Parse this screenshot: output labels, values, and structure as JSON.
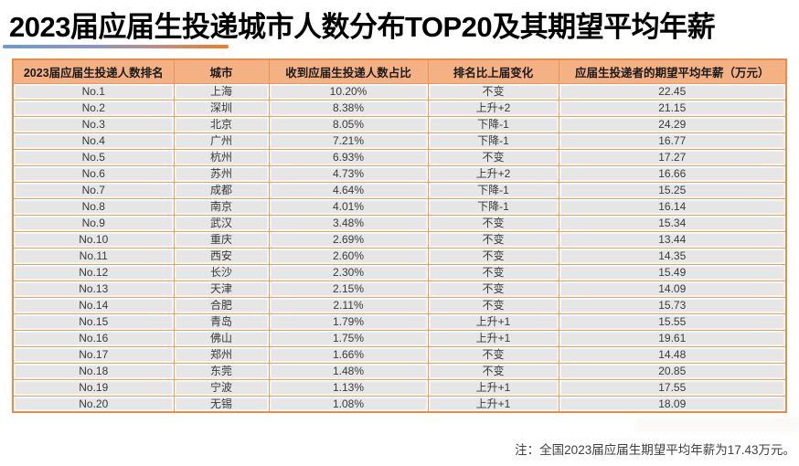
{
  "page": {
    "title": "2023届应届生投递城市人数分布TOP20及其期望平均年薪",
    "footnote": "注：全国2023届应届生期望平均年薪为17.43万元。",
    "colors": {
      "table_header_bg": "#F4B183",
      "table_grid_orange": "#F09A5E",
      "table_outer_border": "#ED8B46",
      "row_bg": "#E7E6E6",
      "underline_gradient_start": "#6C9BD2",
      "underline_gradient_end": "#ED7D31",
      "title_text": "#000000",
      "body_text": "#3A3A3A"
    }
  },
  "chart_data": {
    "type": "table",
    "title": "2023届应届生投递城市人数分布TOP20及其期望平均年薪",
    "note": "注：全国2023届应届生期望平均年薪为17.43万元。",
    "national_avg_expected_salary_wan": 17.43,
    "columns": [
      "2023届应届生投递人数排名",
      "城市",
      "收到应届生投递人数占比",
      "排名比上届变化",
      "应届生投递者的期望平均年薪（万元）"
    ],
    "rows": [
      [
        "No.1",
        "上海",
        "10.20%",
        "不变",
        "22.45"
      ],
      [
        "No.2",
        "深圳",
        "8.38%",
        "上升+2",
        "21.15"
      ],
      [
        "No.3",
        "北京",
        "8.05%",
        "下降-1",
        "24.29"
      ],
      [
        "No.4",
        "广州",
        "7.21%",
        "下降-1",
        "16.77"
      ],
      [
        "No.5",
        "杭州",
        "6.93%",
        "不变",
        "17.27"
      ],
      [
        "No.6",
        "苏州",
        "4.73%",
        "上升+2",
        "16.66"
      ],
      [
        "No.7",
        "成都",
        "4.64%",
        "下降-1",
        "15.25"
      ],
      [
        "No.8",
        "南京",
        "4.01%",
        "下降-1",
        "16.14"
      ],
      [
        "No.9",
        "武汉",
        "3.48%",
        "不变",
        "15.34"
      ],
      [
        "No.10",
        "重庆",
        "2.69%",
        "不变",
        "13.44"
      ],
      [
        "No.11",
        "西安",
        "2.60%",
        "不变",
        "14.35"
      ],
      [
        "No.12",
        "长沙",
        "2.30%",
        "不变",
        "15.49"
      ],
      [
        "No.13",
        "天津",
        "2.15%",
        "不变",
        "14.09"
      ],
      [
        "No.14",
        "合肥",
        "2.11%",
        "不变",
        "15.73"
      ],
      [
        "No.15",
        "青岛",
        "1.79%",
        "上升+1",
        "15.55"
      ],
      [
        "No.16",
        "佛山",
        "1.75%",
        "上升+1",
        "19.61"
      ],
      [
        "No.17",
        "郑州",
        "1.66%",
        "不变",
        "14.48"
      ],
      [
        "No.18",
        "东莞",
        "1.48%",
        "不变",
        "20.85"
      ],
      [
        "No.19",
        "宁波",
        "1.13%",
        "上升+1",
        "17.55"
      ],
      [
        "No.20",
        "无锡",
        "1.08%",
        "上升+1",
        "18.09"
      ]
    ]
  }
}
